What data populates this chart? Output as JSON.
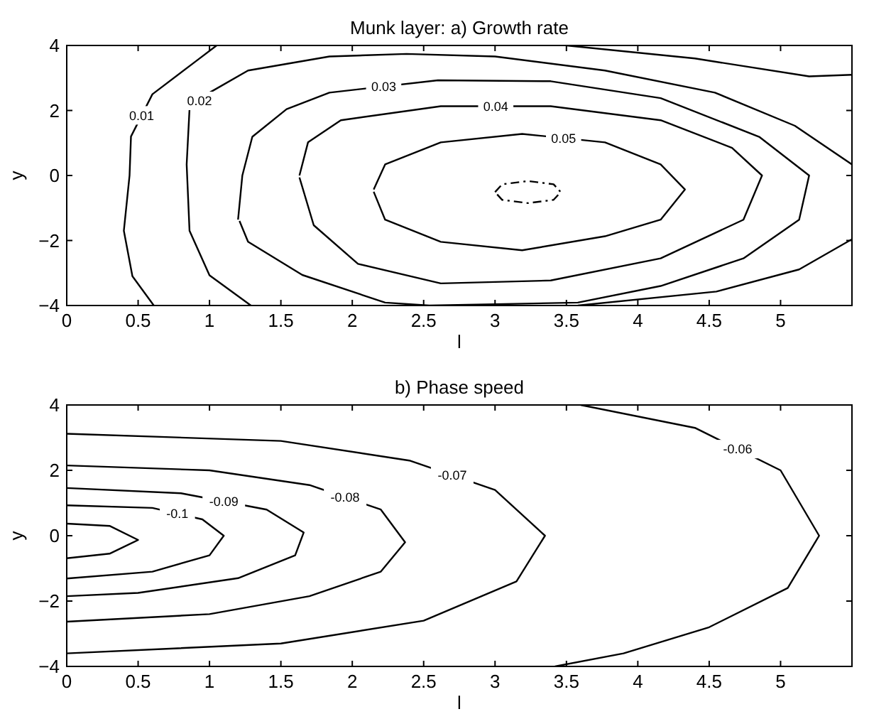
{
  "chart_data": [
    {
      "type": "line",
      "title": "Munk layer: a) Growth rate",
      "xlabel": "l",
      "ylabel": "y",
      "xlim": [
        0,
        5.5
      ],
      "ylim": [
        -4,
        4
      ],
      "xticks": [
        0,
        0.5,
        1,
        1.5,
        2,
        2.5,
        3,
        3.5,
        4,
        4.5,
        5
      ],
      "yticks": [
        -4,
        -2,
        0,
        2,
        4
      ],
      "grid": false,
      "marker": "none",
      "line_style": "solid",
      "series": [
        {
          "name": "0.01",
          "color": "#000000",
          "x": [
            1.05,
            0.9,
            0.6,
            0.45,
            0.44,
            0.4,
            0.46,
            0.61,
            null,
            3.5,
            4.4,
            5.2,
            5.5
          ],
          "values": [
            4,
            3.5,
            2.5,
            1.2,
            0,
            -1.7,
            -3.1,
            -4,
            null,
            4,
            3.6,
            3.05,
            3.1
          ]
        },
        {
          "name": "0.02",
          "color": "#000000",
          "x": [
            1.29,
            1.0,
            0.86,
            0.84,
            0.86,
            1.0,
            1.27,
            1.84,
            2.38,
            3.0,
            3.77,
            4.54,
            5.1,
            5.5,
            null,
            5.5,
            5.13,
            4.55,
            3.58
          ],
          "values": [
            -4,
            -3.07,
            -1.7,
            0.34,
            2.04,
            2.55,
            3.23,
            3.66,
            3.74,
            3.66,
            3.23,
            2.55,
            1.53,
            0.34,
            null,
            -1.96,
            -2.89,
            -3.57,
            -4
          ]
        },
        {
          "name": "0.03",
          "color": "#000000",
          "x": [
            1.2,
            1.23,
            1.3,
            1.54,
            1.84,
            2.6,
            3.39,
            4.16,
            4.85,
            5.2,
            5.13,
            4.74,
            4.16,
            3.58,
            2.54,
            2.23,
            1.65,
            1.27,
            1.21
          ],
          "values": [
            -1.36,
            0,
            1.19,
            2.04,
            2.55,
            2.93,
            2.9,
            2.38,
            1.19,
            0,
            -1.36,
            -2.55,
            -3.4,
            -3.91,
            -4,
            -3.91,
            -3.06,
            -2.04,
            -1.4
          ]
        },
        {
          "name": "0.04",
          "color": "#000000",
          "x": [
            1.63,
            1.69,
            1.92,
            2.62,
            3.39,
            4.16,
            4.66,
            4.87,
            4.74,
            4.16,
            3.39,
            2.62,
            2.04,
            1.73,
            1.63
          ],
          "values": [
            0,
            1.02,
            1.7,
            2.13,
            2.13,
            1.7,
            0.85,
            0,
            -1.36,
            -2.55,
            -3.23,
            -3.32,
            -2.72,
            -1.53,
            -0.06
          ]
        },
        {
          "name": "0.05",
          "color": "#000000",
          "x": [
            2.15,
            2.23,
            2.62,
            3.19,
            3.77,
            4.16,
            4.33,
            4.16,
            3.77,
            3.19,
            2.62,
            2.23,
            2.15
          ],
          "values": [
            -0.43,
            0.34,
            1.02,
            1.28,
            1.02,
            0.34,
            -0.43,
            -1.36,
            -1.87,
            -2.3,
            -2.04,
            -1.36,
            -0.5
          ]
        },
        {
          "color": "#000000",
          "line_style": "dashed",
          "x": [
            3.0,
            3.05,
            3.23,
            3.41,
            3.46,
            3.41,
            3.23,
            3.05,
            3.01
          ],
          "values": [
            -0.51,
            -0.27,
            -0.17,
            -0.27,
            -0.51,
            -0.75,
            -0.85,
            -0.75,
            -0.56
          ]
        }
      ]
    },
    {
      "type": "line",
      "title": "b) Phase speed",
      "xlabel": "l",
      "ylabel": "y",
      "xlim": [
        0,
        5.5
      ],
      "ylim": [
        -4,
        4
      ],
      "xticks": [
        0,
        0.5,
        1,
        1.5,
        2,
        2.5,
        3,
        3.5,
        4,
        4.5,
        5
      ],
      "yticks": [
        -4,
        -2,
        0,
        2,
        4
      ],
      "grid": false,
      "marker": "none",
      "line_style": "solid",
      "series": [
        {
          "color": "#000000",
          "x": [
            0,
            0.3,
            0.5,
            0.3,
            0
          ],
          "values": [
            0.37,
            0.3,
            -0.13,
            -0.55,
            -0.69
          ]
        },
        {
          "name": "-0.1",
          "color": "#000000",
          "x": [
            0,
            0.6,
            0.95,
            1.1,
            1.0,
            0.6,
            0
          ],
          "values": [
            0.93,
            0.85,
            0.5,
            0,
            -0.6,
            -1.1,
            -1.31
          ]
        },
        {
          "name": "-0.09",
          "color": "#000000",
          "x": [
            0,
            0.8,
            1.4,
            1.66,
            1.6,
            1.2,
            0.5,
            0
          ],
          "values": [
            1.46,
            1.3,
            0.8,
            0.1,
            -0.6,
            -1.3,
            -1.75,
            -1.85
          ]
        },
        {
          "name": "-0.08",
          "color": "#000000",
          "x": [
            0,
            1,
            1.7,
            2.2,
            2.37,
            2.2,
            1.7,
            1,
            0
          ],
          "values": [
            2.15,
            2.0,
            1.55,
            0.8,
            -0.2,
            -1.1,
            -1.85,
            -2.4,
            -2.63
          ]
        },
        {
          "name": "-0.07",
          "color": "#000000",
          "x": [
            0,
            1.5,
            2.4,
            3.0,
            3.35,
            3.15,
            2.5,
            1.5,
            0
          ],
          "values": [
            3.12,
            2.9,
            2.3,
            1.4,
            0,
            -1.4,
            -2.6,
            -3.3,
            -3.6
          ]
        },
        {
          "name": "-0.06",
          "color": "#000000",
          "x": [
            3.6,
            4.4,
            5.0,
            5.27,
            5.05,
            4.5,
            3.9,
            3.42
          ],
          "values": [
            4,
            3.3,
            2.0,
            0,
            -1.6,
            -2.8,
            -3.6,
            -4
          ]
        }
      ]
    }
  ]
}
